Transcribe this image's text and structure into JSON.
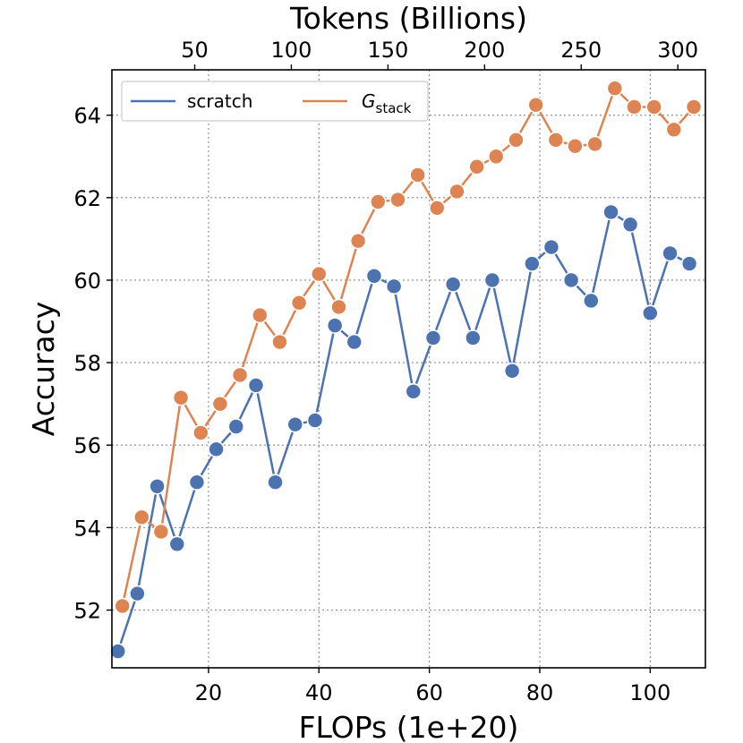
{
  "chart_data": {
    "type": "line",
    "xlabel": "FLOPs (1e+20)",
    "x2label": "Tokens (Billions)",
    "ylabel": "Accuracy",
    "xlim": [
      2.5,
      110
    ],
    "ylim": [
      50.6,
      65.1
    ],
    "xticks": [
      20,
      40,
      60,
      80,
      100
    ],
    "yticks": [
      52,
      54,
      56,
      58,
      60,
      62,
      64
    ],
    "x2ticks": [
      50,
      100,
      150,
      200,
      250,
      300
    ],
    "x2_per_x": 2.857,
    "grid": true,
    "legend": {
      "position": "top-left",
      "columns": 2
    },
    "series": [
      {
        "name": "scratch",
        "color": "#4c72b0",
        "x": [
          3.6,
          7.1,
          10.7,
          14.3,
          17.9,
          21.4,
          25.0,
          28.6,
          32.1,
          35.7,
          39.3,
          42.9,
          46.4,
          50.0,
          53.6,
          57.1,
          60.7,
          64.3,
          67.9,
          71.4,
          75.0,
          78.6,
          82.1,
          85.7,
          89.3,
          92.9,
          96.4,
          100.0,
          103.6,
          107.1
        ],
        "y": [
          51.0,
          52.4,
          55.0,
          53.6,
          55.1,
          55.9,
          56.45,
          57.45,
          55.1,
          56.5,
          56.6,
          58.9,
          58.5,
          60.1,
          59.85,
          57.3,
          58.6,
          59.9,
          58.6,
          60.0,
          57.8,
          60.4,
          60.8,
          60.0,
          59.5,
          61.65,
          61.35,
          59.2,
          60.65,
          60.4
        ]
      },
      {
        "name": "G",
        "name_subscript": "stack",
        "color": "#dd8452",
        "x": [
          4.4,
          7.9,
          11.4,
          15.0,
          18.6,
          22.1,
          25.7,
          29.3,
          32.9,
          36.4,
          40.0,
          43.6,
          47.1,
          50.7,
          54.3,
          57.9,
          61.4,
          65.0,
          68.6,
          72.1,
          75.7,
          79.3,
          82.9,
          86.4,
          90.0,
          93.6,
          97.1,
          100.7,
          104.3,
          107.9
        ],
        "y": [
          52.1,
          54.25,
          53.9,
          57.15,
          56.3,
          57.0,
          57.7,
          59.15,
          58.5,
          59.45,
          60.15,
          59.35,
          60.95,
          61.9,
          61.95,
          62.55,
          61.75,
          62.15,
          62.75,
          63.0,
          63.4,
          64.25,
          63.4,
          63.25,
          63.3,
          64.65,
          64.2,
          64.2,
          63.65,
          64.2
        ]
      }
    ]
  }
}
